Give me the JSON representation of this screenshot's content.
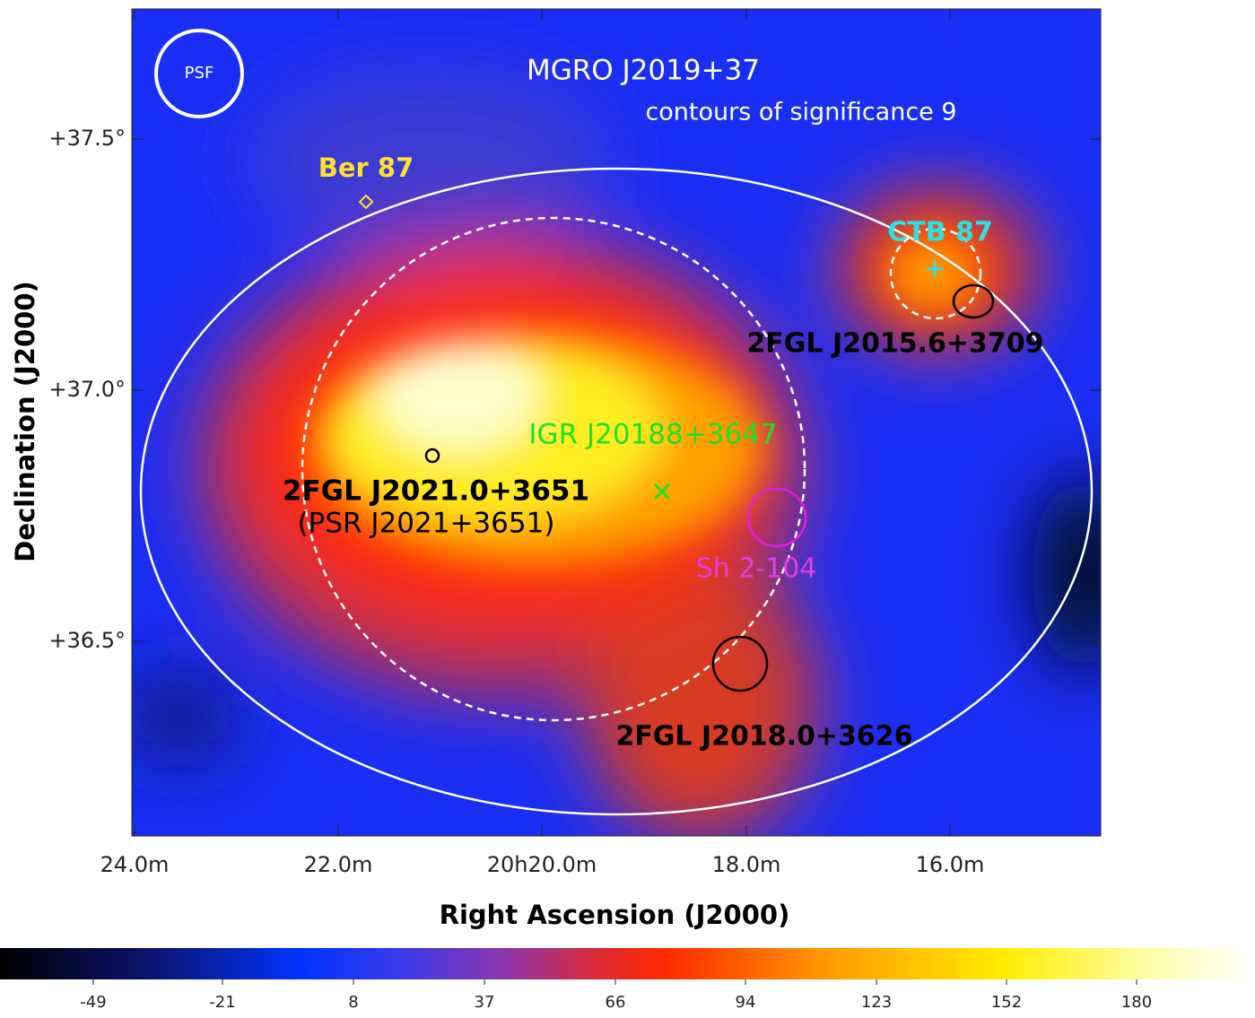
{
  "title": "MGRO J2019+37",
  "subtitle": "contours of significance 9",
  "x_axis": {
    "label": "Right Ascension (J2000)",
    "ticks": [
      "24.0m",
      "22.0m",
      "20h20.0m",
      "18.0m",
      "16.0m"
    ]
  },
  "y_axis": {
    "label": "Declination (J2000)",
    "ticks": [
      "+37.5°",
      "+37.0°",
      "+36.5°"
    ]
  },
  "annotations": {
    "psf": "PSF",
    "ber87": "Ber 87",
    "ctb87": "CTB 87",
    "fgl2015": "2FGL J2015.6+3709",
    "igr": "IGR J20188+3647",
    "fgl2021": "2FGL J2021.0+3651",
    "psr": "(PSR J2021+3651)",
    "sh2": "Sh 2-104",
    "fgl2018": "2FGL J2018.0+3626"
  },
  "colorbar": {
    "ticks": [
      -49,
      -21,
      8,
      37,
      66,
      94,
      123,
      152,
      180
    ]
  }
}
